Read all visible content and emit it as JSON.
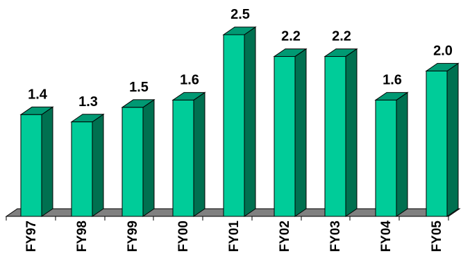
{
  "chart_data": {
    "type": "bar",
    "categories": [
      "FY97",
      "FY98",
      "FY99",
      "FY00",
      "FY01",
      "FY02",
      "FY03",
      "FY04",
      "FY05"
    ],
    "values": [
      1.4,
      1.3,
      1.5,
      1.6,
      2.5,
      2.2,
      2.2,
      1.6,
      2.0
    ],
    "data_labels": [
      "1.4",
      "1.3",
      "1.5",
      "1.6",
      "2.5",
      "2.2",
      "2.2",
      "1.6",
      "2.0"
    ],
    "title": "",
    "xlabel": "",
    "ylabel": "",
    "ylim": [
      0,
      2.5
    ],
    "grid": false,
    "legend": "none",
    "three_d": true,
    "colors": {
      "bar_front": "#00CC99",
      "bar_side": "#007050",
      "bar_top": "#009973",
      "floor": "#808080",
      "outline": "#000000"
    }
  }
}
